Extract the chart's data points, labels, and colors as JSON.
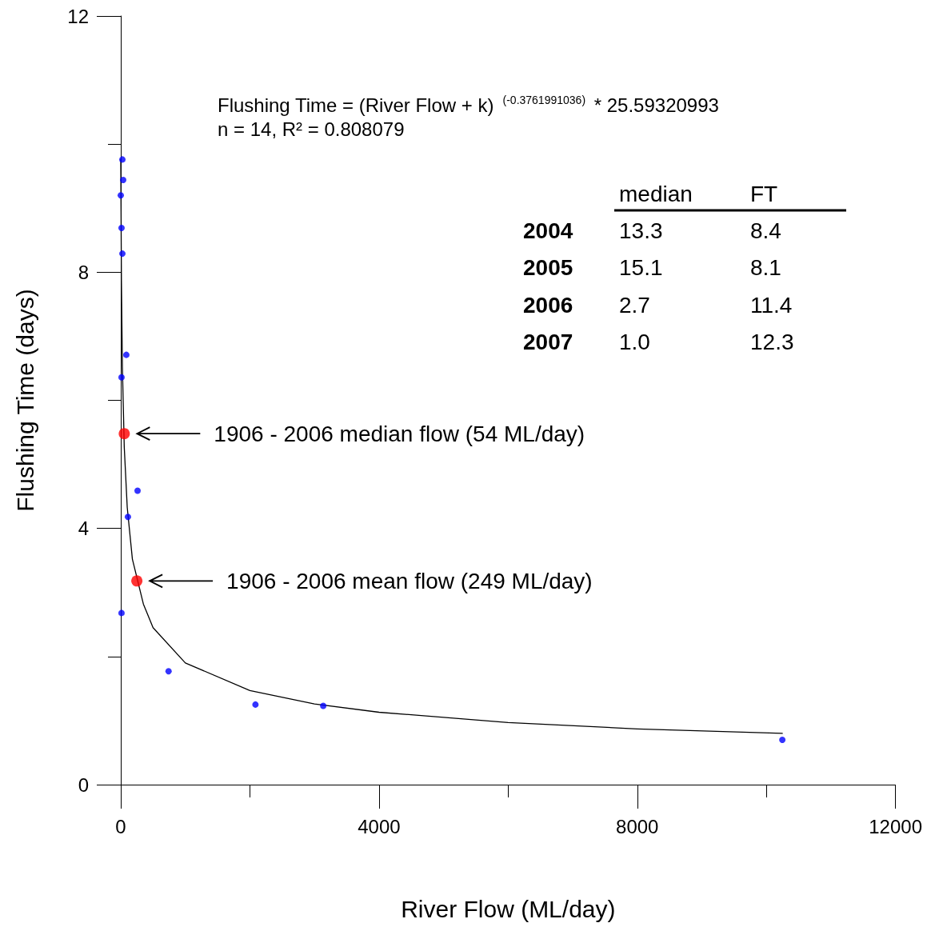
{
  "chart_data": {
    "type": "scatter",
    "xlabel": "River Flow (ML/day)",
    "ylabel": "Flushing Time (days)",
    "xlim": [
      0,
      12000
    ],
    "ylim": [
      0,
      12
    ],
    "xticks": [
      0,
      {
        "value": 2000,
        "label": null
      },
      4000,
      {
        "value": 6000,
        "label": null
      },
      8000,
      {
        "value": 10000,
        "label": null
      },
      12000
    ],
    "yticks": [
      0,
      {
        "value": 2,
        "label": null
      },
      4,
      {
        "value": 6,
        "label": null
      },
      8,
      {
        "value": 10,
        "label": null
      },
      12
    ],
    "grid": false,
    "marker": "circle",
    "series": [
      {
        "color": "#0000ff",
        "x": [
          25,
          37,
          0,
          12,
          25,
          86,
          12,
          260,
          111,
          12,
          740,
          2086,
          3136,
          10247
        ],
        "values": [
          9.76,
          9.44,
          9.2,
          8.69,
          8.29,
          6.71,
          6.36,
          4.59,
          4.18,
          2.68,
          1.77,
          1.25,
          1.23,
          0.7
        ]
      },
      {
        "color": "#ff0000",
        "x": [
          54,
          249
        ],
        "values": [
          5.48,
          3.18
        ]
      },
      {
        "type": "line",
        "color": "#000000",
        "marker": "none",
        "line_style": "solid",
        "x": [
          0,
          10,
          25,
          54,
          100,
          180,
          350,
          500,
          1000,
          2000,
          3000,
          4000,
          6000,
          8000,
          10247
        ],
        "values": [
          9.76,
          7.87,
          6.52,
          5.27,
          4.33,
          3.52,
          2.82,
          2.45,
          1.9,
          1.47,
          1.26,
          1.13,
          0.97,
          0.87,
          0.8
        ]
      }
    ],
    "annotations": [
      "Flushing Time = (River Flow + k) $^{(-0.3761991036)}$ * 25.59320993",
      "n = 14, R² = 0.808079",
      "1906 - 2006 median flow (54 ML/day)",
      "1906 - 2006 mean flow (249 ML/day)",
      "median",
      "FT",
      "2004",
      "13.3",
      "8.4",
      "2005",
      "15.1",
      "8.1",
      "2006",
      "2.7",
      "11.4",
      "2007",
      "1.0",
      "12.3"
    ]
  }
}
